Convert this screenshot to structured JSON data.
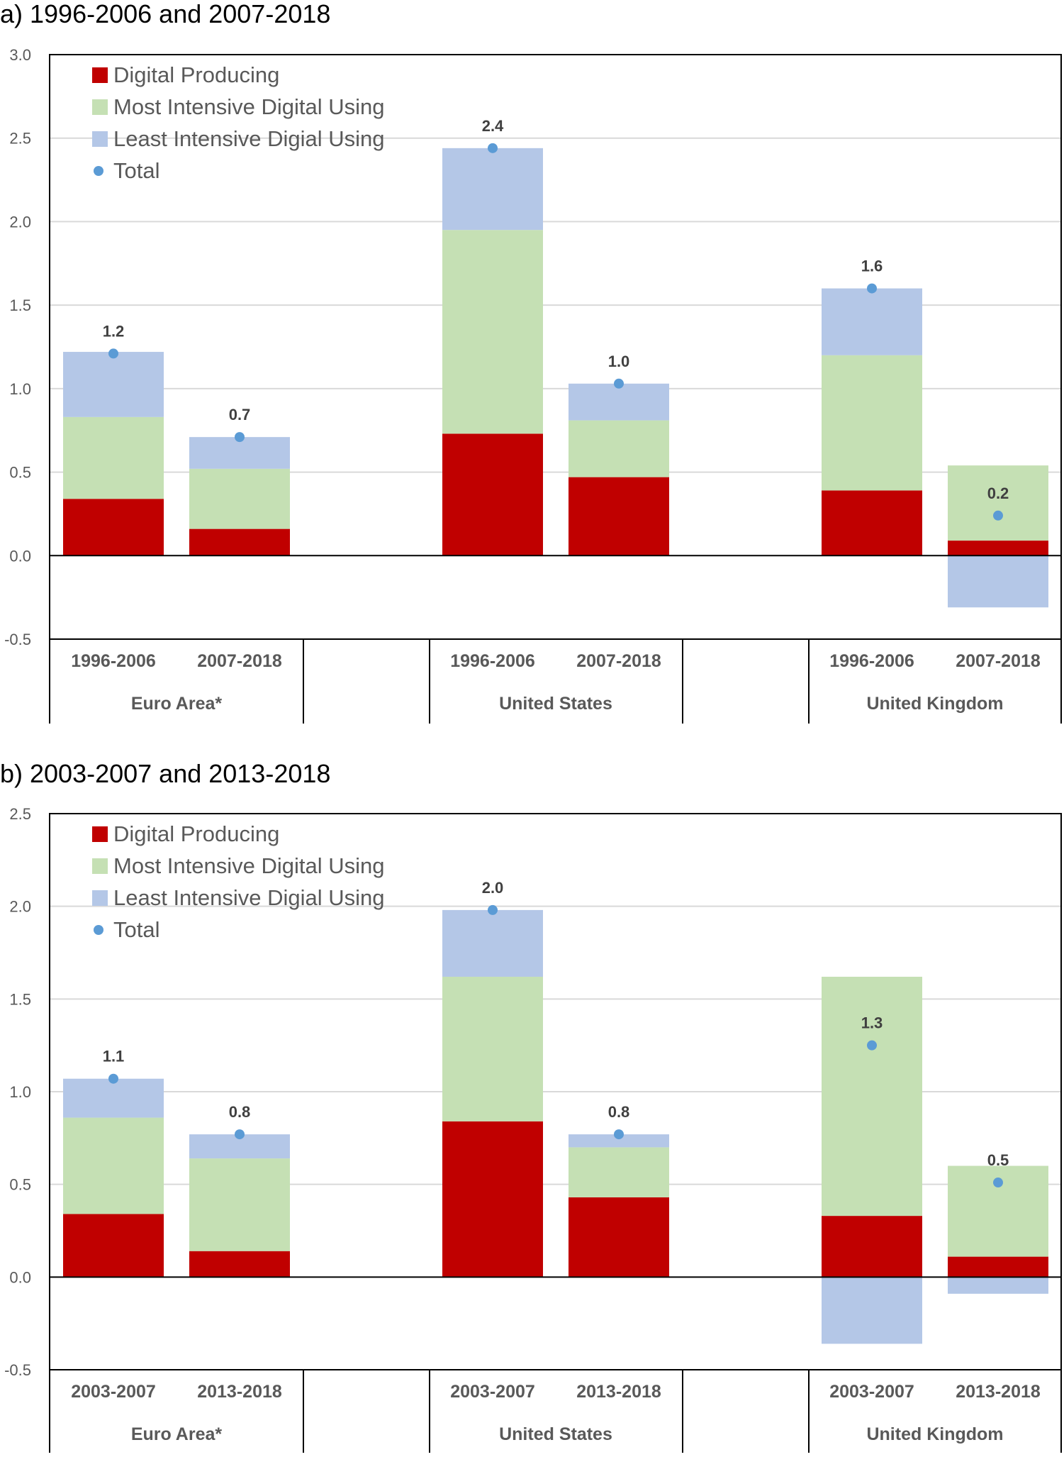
{
  "colors": {
    "digital_producing": "#C00000",
    "most_intensive": "#C5E0B4",
    "least_intensive": "#B4C7E7",
    "total": "#5B9BD5",
    "grid": "#D9D9D9",
    "axis": "#000000"
  },
  "chart_data": [
    {
      "type": "bar",
      "stacked": true,
      "title": "a) 1996-2006 and 2007-2018",
      "ylim": [
        -0.5,
        3.0
      ],
      "yticks": [
        "-0.5",
        "0.0",
        "0.5",
        "1.0",
        "1.5",
        "2.0",
        "2.5",
        "3.0"
      ],
      "grid": true,
      "legend_position": "top-left",
      "legend": [
        "Digital Producing",
        "Most Intensive Digital Using",
        "Least Intensive Digial Using",
        "Total"
      ],
      "groups": [
        {
          "name": "Euro Area*",
          "bars": [
            {
              "category": "1996-2006",
              "digital_producing": 0.34,
              "most_intensive": 0.49,
              "least_intensive": 0.39,
              "total": 1.21,
              "total_label": "1.2"
            },
            {
              "category": "2007-2018",
              "digital_producing": 0.16,
              "most_intensive": 0.36,
              "least_intensive": 0.19,
              "total": 0.71,
              "total_label": "0.7"
            }
          ]
        },
        {
          "name": "United States",
          "bars": [
            {
              "category": "1996-2006",
              "digital_producing": 0.73,
              "most_intensive": 1.22,
              "least_intensive": 0.49,
              "total": 2.44,
              "total_label": "2.4"
            },
            {
              "category": "2007-2018",
              "digital_producing": 0.47,
              "most_intensive": 0.34,
              "least_intensive": 0.22,
              "total": 1.03,
              "total_label": "1.0"
            }
          ]
        },
        {
          "name": "United Kingdom",
          "bars": [
            {
              "category": "1996-2006",
              "digital_producing": 0.39,
              "most_intensive": 0.81,
              "least_intensive": 0.4,
              "total": 1.6,
              "total_label": "1.6"
            },
            {
              "category": "2007-2018",
              "digital_producing": 0.09,
              "most_intensive": 0.45,
              "least_intensive": -0.31,
              "total": 0.24,
              "total_label": "0.2"
            }
          ]
        }
      ]
    },
    {
      "type": "bar",
      "stacked": true,
      "title": "b) 2003-2007 and 2013-2018",
      "ylim": [
        -0.5,
        2.5
      ],
      "yticks": [
        "-0.5",
        "0.0",
        "0.5",
        "1.0",
        "1.5",
        "2.0",
        "2.5"
      ],
      "grid": true,
      "legend_position": "top-left",
      "legend": [
        "Digital Producing",
        "Most Intensive Digital Using",
        "Least Intensive Digial Using",
        "Total"
      ],
      "groups": [
        {
          "name": "Euro Area*",
          "bars": [
            {
              "category": "2003-2007",
              "digital_producing": 0.34,
              "most_intensive": 0.52,
              "least_intensive": 0.21,
              "total": 1.07,
              "total_label": "1.1"
            },
            {
              "category": "2013-2018",
              "digital_producing": 0.14,
              "most_intensive": 0.5,
              "least_intensive": 0.13,
              "total": 0.77,
              "total_label": "0.8"
            }
          ]
        },
        {
          "name": "United States",
          "bars": [
            {
              "category": "2003-2007",
              "digital_producing": 0.84,
              "most_intensive": 0.78,
              "least_intensive": 0.36,
              "total": 1.98,
              "total_label": "2.0"
            },
            {
              "category": "2013-2018",
              "digital_producing": 0.43,
              "most_intensive": 0.27,
              "least_intensive": 0.07,
              "total": 0.77,
              "total_label": "0.8"
            }
          ]
        },
        {
          "name": "United Kingdom",
          "bars": [
            {
              "category": "2003-2007",
              "digital_producing": 0.33,
              "most_intensive": 1.29,
              "least_intensive": -0.36,
              "total": 1.25,
              "total_label": "1.3"
            },
            {
              "category": "2013-2018",
              "digital_producing": 0.11,
              "most_intensive": 0.49,
              "least_intensive": -0.09,
              "total": 0.51,
              "total_label": "0.5"
            }
          ]
        }
      ]
    }
  ]
}
